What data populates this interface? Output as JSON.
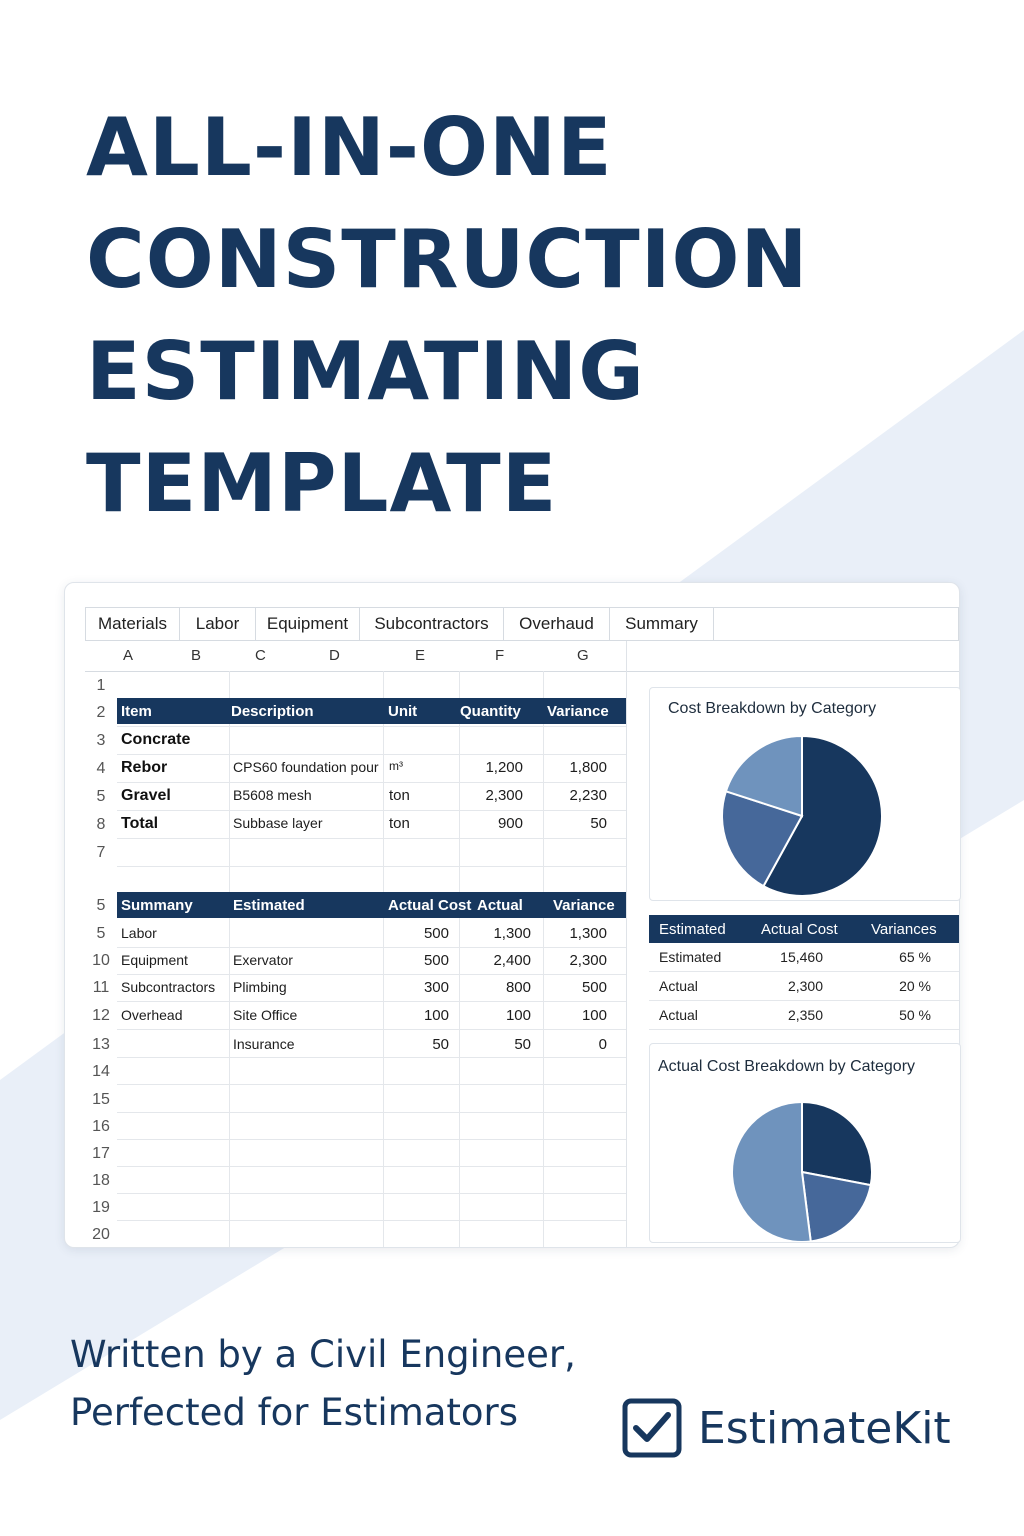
{
  "hero": {
    "title_lines": [
      "ALL-IN-ONE",
      "CONSTRUCTION",
      "ESTIMATING",
      "TEMPLATE"
    ]
  },
  "spreadsheet": {
    "tabs": [
      "Materials",
      "Labor",
      "Equipment",
      "Subcontractors",
      "Overhaud",
      "Summary"
    ],
    "columns": [
      "A",
      "B",
      "C",
      "D",
      "E",
      "F",
      "G"
    ],
    "row_numbers": [
      "1",
      "2",
      "3",
      "4",
      "5",
      "8",
      "7",
      "",
      "5",
      "5",
      "10",
      "11",
      "12",
      "13",
      "14",
      "15",
      "16",
      "17",
      "18",
      "19",
      "20"
    ],
    "materials_table": {
      "headers": [
        "Item",
        "Description",
        "Unit",
        "Quantity",
        "Variance"
      ],
      "rows": [
        [
          "Concrate",
          "",
          "",
          "",
          ""
        ],
        [
          "Rebor",
          "CPS60 foundation pour",
          "m³",
          "1,200",
          "1,800"
        ],
        [
          "Gravel",
          "B5608 mesh",
          "ton",
          "2,300",
          "2,230"
        ],
        [
          "Total",
          "Subbase layer",
          "ton",
          "900",
          "50"
        ]
      ]
    },
    "summary_table": {
      "headers": [
        "Summany",
        "Estimated",
        "Actual Cost",
        "Actual",
        "Variance"
      ],
      "rows": [
        [
          "Labor",
          "",
          "500",
          "1,300",
          "1,300"
        ],
        [
          "Equipment",
          "Exervator",
          "500",
          "2,400",
          "2,300"
        ],
        [
          "Subcontractors",
          "Plimbing",
          "300",
          "800",
          "500"
        ],
        [
          "Overhead",
          "Site Office",
          "100",
          "100",
          "100"
        ],
        [
          "",
          "Insurance",
          "50",
          "50",
          "0"
        ]
      ]
    }
  },
  "right_panel": {
    "chart1_title": "Cost Breakdown by Category",
    "chart2_title": "Actual Cost Breakdown by Category",
    "variance_table": {
      "headers": [
        "Estimated",
        "Actual Cost",
        "Variances"
      ],
      "rows": [
        [
          "Estimated",
          "15,460",
          "65 %"
        ],
        [
          "Actual",
          "2,300",
          "20 %"
        ],
        [
          "Actual",
          "2,350",
          "50 %"
        ]
      ]
    }
  },
  "chart_data": [
    {
      "type": "pie",
      "title": "Cost Breakdown by Category",
      "values": [
        58,
        22,
        20
      ],
      "colors": [
        "#17375e",
        "#46689a",
        "#6f93bd"
      ]
    },
    {
      "type": "pie",
      "title": "Actual Cost Breakdown by Category",
      "values": [
        28,
        20,
        52
      ],
      "colors": [
        "#17375e",
        "#46689a",
        "#6f93bd"
      ]
    }
  ],
  "footer": {
    "tagline_line1": "Written by a Civil Engineer,",
    "tagline_line2": "Perfected for Estimators",
    "brand": "EstimateKit"
  },
  "colors": {
    "navy": "#17375e",
    "band": "#e8eef7"
  }
}
